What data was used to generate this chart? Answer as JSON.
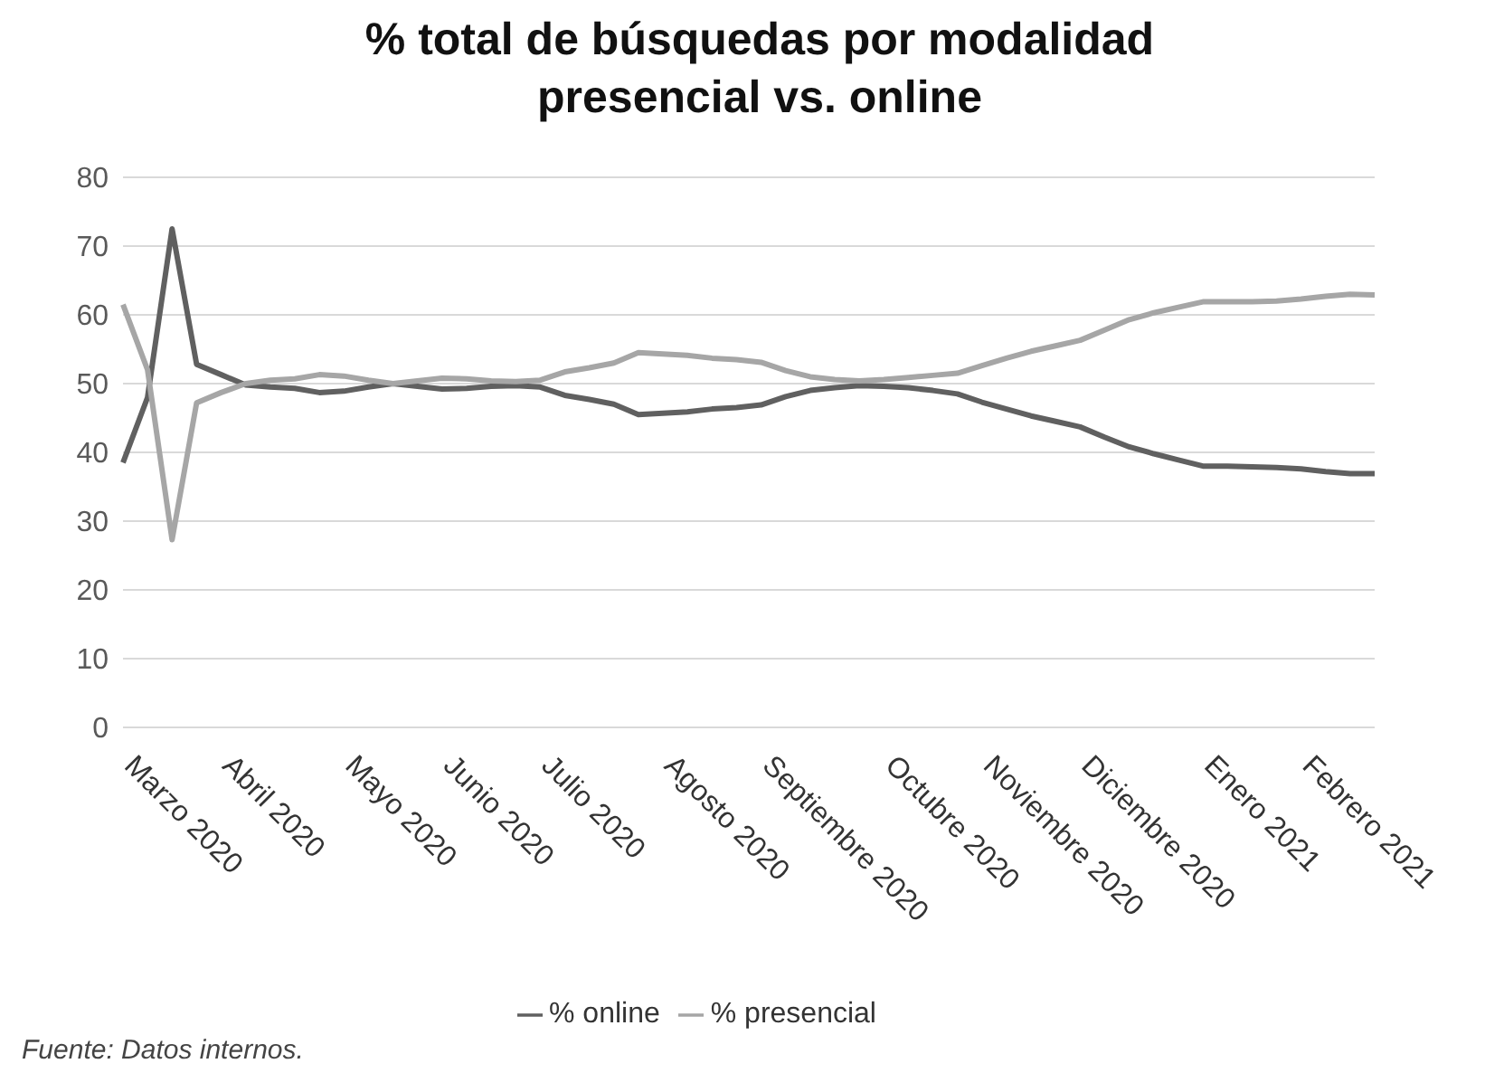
{
  "chart_data": {
    "type": "line",
    "title": "% total de búsquedas por modalidad presencial vs. online",
    "categories": [
      "Marzo 2020",
      null,
      null,
      null,
      "Abril 2020",
      null,
      null,
      null,
      null,
      "Mayo 2020",
      null,
      null,
      null,
      "Junio 2020",
      null,
      null,
      null,
      "Julio 2020",
      null,
      null,
      null,
      null,
      "Agosto 2020",
      null,
      null,
      null,
      "Septiembre 2020",
      null,
      null,
      null,
      null,
      "Octubre 2020",
      null,
      null,
      null,
      "Noviembre 2020",
      null,
      null,
      null,
      "Diciembre 2020",
      null,
      null,
      null,
      null,
      "Enero 2021",
      null,
      null,
      null,
      "Febrero 2021",
      null,
      null,
      null
    ],
    "series": [
      {
        "name": "% online",
        "color": "#606060",
        "values": [
          38.5,
          48,
          72.5,
          52.8,
          51.3,
          49.8,
          49.5,
          49.3,
          48.7,
          48.9,
          49.5,
          50,
          49.6,
          49.2,
          49.3,
          49.6,
          49.7,
          49.5,
          48.3,
          47.7,
          47,
          45.5,
          45.7,
          45.9,
          46.3,
          46.5,
          46.9,
          48.1,
          49,
          49.4,
          49.7,
          49.6,
          49.4,
          49,
          48.5,
          47.3,
          46.3,
          45.3,
          44.5,
          43.7,
          42.2,
          40.8,
          39.8,
          38.9,
          38,
          38,
          37.9,
          37.8,
          37.6,
          37.2,
          36.9,
          36.9
        ]
      },
      {
        "name": "% presencial",
        "color": "#a6a6a6",
        "values": [
          61.5,
          52,
          27.3,
          47.2,
          48.7,
          50,
          50.5,
          50.7,
          51.3,
          51.1,
          50.5,
          50,
          50.4,
          50.8,
          50.7,
          50.4,
          50.3,
          50.5,
          51.7,
          52.3,
          53,
          54.5,
          54.3,
          54.1,
          53.7,
          53.5,
          53.1,
          51.9,
          51,
          50.6,
          50.4,
          50.6,
          50.9,
          51.2,
          51.5,
          52.6,
          53.7,
          54.7,
          55.5,
          56.3,
          57.8,
          59.3,
          60.3,
          61.1,
          61.9,
          61.9,
          61.9,
          62,
          62.3,
          62.7,
          63,
          62.9
        ]
      }
    ],
    "ylim": [
      0,
      80
    ],
    "yticks": [
      0,
      10,
      20,
      30,
      40,
      50,
      60,
      70,
      80
    ],
    "grid": "y",
    "legend": "bottom",
    "marker": "none",
    "line_style": "solid",
    "annotations": [
      "Fuente: Datos internos."
    ]
  }
}
